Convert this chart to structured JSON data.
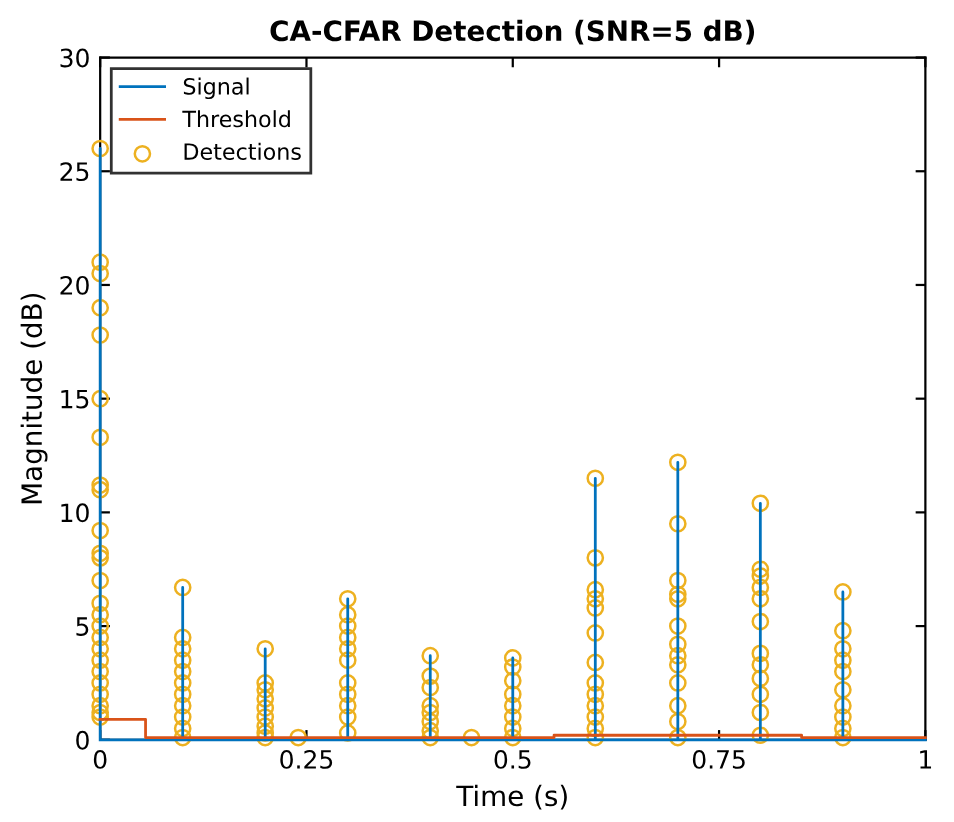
{
  "chart_data": {
    "type": "line",
    "title": "CA-CFAR Detection (SNR=5 dB)",
    "xlabel": "Time (s)",
    "ylabel": "Magnitude (dB)",
    "xlim": [
      0,
      1
    ],
    "ylim": [
      0,
      30
    ],
    "xticks": [
      0,
      0.25,
      0.5,
      0.75,
      1
    ],
    "yticks": [
      0,
      5,
      10,
      15,
      20,
      25,
      30
    ],
    "grid": false,
    "legend": "top left",
    "series": [
      {
        "name": "Signal",
        "color": "#0072bd",
        "x": [
          0,
          0,
          0,
          0.1,
          0.1,
          0.1,
          0.2,
          0.2,
          0.2,
          0.3,
          0.3,
          0.3,
          0.4,
          0.4,
          0.4,
          0.5,
          0.5,
          0.5,
          0.6,
          0.6,
          0.6,
          0.7,
          0.7,
          0.7,
          0.8,
          0.8,
          0.8,
          0.9,
          0.9,
          0.9,
          1
        ],
        "values": [
          0,
          26,
          0,
          0,
          6.7,
          0,
          0,
          4.0,
          0,
          0,
          6.2,
          0,
          0,
          3.7,
          0,
          0,
          3.6,
          0,
          0,
          11.5,
          0,
          0,
          12.2,
          0,
          0,
          10.4,
          0,
          0,
          6.5,
          0,
          0
        ]
      },
      {
        "name": "Threshold",
        "color": "#d95319",
        "x": [
          0,
          0.055,
          0.055,
          0.55,
          0.55,
          0.85,
          0.85,
          1
        ],
        "values": [
          0.9,
          0.9,
          0.1,
          0.1,
          0.2,
          0.2,
          0.1,
          0.1
        ]
      },
      {
        "name": "Detections",
        "type": "scatter",
        "marker": "circle",
        "color": "#edb120",
        "x": [
          0,
          0,
          0,
          0,
          0,
          0,
          0,
          0,
          0,
          0,
          0,
          0,
          0,
          0,
          0,
          0,
          0,
          0,
          0,
          0,
          0,
          0,
          0,
          0,
          0,
          0.1,
          0.1,
          0.1,
          0.1,
          0.1,
          0.1,
          0.1,
          0.1,
          0.1,
          0.1,
          0.1,
          0.2,
          0.2,
          0.2,
          0.2,
          0.2,
          0.2,
          0.2,
          0.2,
          0.2,
          0.24,
          0.3,
          0.3,
          0.3,
          0.3,
          0.3,
          0.3,
          0.3,
          0.3,
          0.3,
          0.3,
          0.3,
          0.4,
          0.4,
          0.4,
          0.4,
          0.4,
          0.4,
          0.4,
          0.4,
          0.45,
          0.5,
          0.5,
          0.5,
          0.5,
          0.5,
          0.5,
          0.5,
          0.5,
          0.6,
          0.6,
          0.6,
          0.6,
          0.6,
          0.6,
          0.6,
          0.6,
          0.6,
          0.6,
          0.6,
          0.6,
          0.6,
          0.7,
          0.7,
          0.7,
          0.7,
          0.7,
          0.7,
          0.7,
          0.7,
          0.7,
          0.7,
          0.7,
          0.7,
          0.7,
          0.8,
          0.8,
          0.8,
          0.8,
          0.8,
          0.8,
          0.8,
          0.8,
          0.8,
          0.8,
          0.8,
          0.8,
          0.9,
          0.9,
          0.9,
          0.9,
          0.9,
          0.9,
          0.9,
          0.9,
          0.9,
          0.9
        ],
        "values": [
          26,
          21,
          20.5,
          19,
          17.8,
          15,
          13.3,
          11.2,
          11,
          9.2,
          8.2,
          8,
          7,
          6,
          5.5,
          5,
          4.5,
          4,
          3.5,
          3,
          2.5,
          2,
          1.5,
          1.2,
          1,
          6.7,
          4.5,
          4,
          3.5,
          3,
          2.5,
          2,
          1.5,
          1,
          0.5,
          0.1,
          4.0,
          2.5,
          2.2,
          1.8,
          1.4,
          1,
          0.6,
          0.3,
          0.1,
          0.1,
          6.2,
          5.5,
          5,
          4.5,
          4,
          3.5,
          2.5,
          2,
          1.5,
          1,
          0.3,
          3.7,
          2.8,
          2.3,
          1.5,
          1.2,
          0.8,
          0.4,
          0.1,
          0.1,
          3.6,
          3.2,
          2.6,
          2,
          1.5,
          1,
          0.5,
          0.1,
          11.5,
          8,
          6.6,
          6.2,
          5.8,
          4.7,
          3.4,
          2.5,
          2,
          1.5,
          1,
          0.5,
          0.1,
          12.2,
          9.5,
          7,
          6.4,
          6.2,
          5,
          4.2,
          3.7,
          3.3,
          2.5,
          1.5,
          0.8,
          0.1,
          10.4,
          7.5,
          7.2,
          6.7,
          6.2,
          5.2,
          3.8,
          3.3,
          2.7,
          2,
          1.2,
          0.2,
          6.5,
          4.8,
          4,
          3.5,
          3,
          2.2,
          1.5,
          1,
          0.5,
          0.1
        ]
      }
    ]
  }
}
